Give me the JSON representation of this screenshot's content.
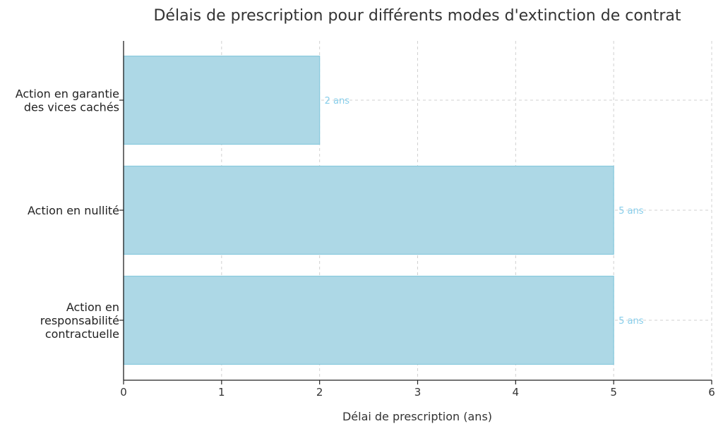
{
  "chart_data": {
    "type": "bar",
    "orientation": "horizontal",
    "title": "Délais de prescription pour différents modes d'extinction de contrat",
    "xlabel": "Délai de prescription (ans)",
    "ylabel": "",
    "xlim": [
      0,
      6
    ],
    "x_ticks": [
      "0",
      "1",
      "2",
      "3",
      "4",
      "5",
      "6"
    ],
    "categories": [
      [
        "Action en garantie",
        "des vices cachés"
      ],
      [
        "Action en nullité"
      ],
      [
        "Action en",
        "responsabilité",
        "contractuelle"
      ]
    ],
    "values": [
      2,
      5,
      5
    ],
    "data_labels": [
      "2 ans",
      "5 ans",
      "5 ans"
    ],
    "grid": true,
    "colors": {
      "bar_fill": "#add8e6",
      "bar_edge": "#87c9dd",
      "data_label": "#87ceeb"
    }
  }
}
